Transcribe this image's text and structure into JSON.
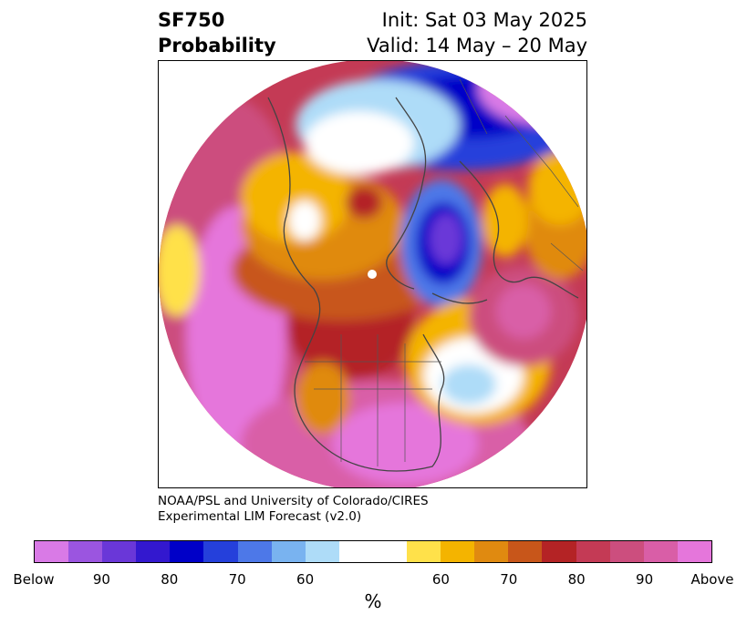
{
  "title": {
    "variable": "SF750",
    "subtitle": "Probability",
    "init": "Init: Sat 03 May 2025",
    "valid": "Valid: 14 May – 20 May"
  },
  "credit": {
    "line1": "NOAA/PSL and University of Colorado/CIRES",
    "line2": "Experimental LIM Forecast (v2.0)"
  },
  "colorbar": {
    "colors": [
      "#d97ae6",
      "#9b55e0",
      "#6a37d8",
      "#3318cf",
      "#0000c8",
      "#2540db",
      "#4d78e8",
      "#79b3f0",
      "#aedcf8",
      "#ffffff",
      "#ffffff",
      "#ffe14a",
      "#f4b400",
      "#e08a10",
      "#c8561a",
      "#b42325",
      "#c43a55",
      "#cc4e7e",
      "#d95ea7",
      "#e576db"
    ],
    "ticks": [
      "Below",
      "90",
      "80",
      "70",
      "60",
      "60",
      "70",
      "80",
      "90",
      "Above"
    ],
    "unit": "%"
  },
  "map": {
    "projection": "north-polar-stereographic",
    "features": [
      "coastlines",
      "country-borders",
      "state-borders"
    ],
    "anomalies": [
      {
        "region": "North Pacific",
        "category": "Above",
        "color": "#e576db"
      },
      {
        "region": "United States",
        "category": "Above",
        "color": "#e576db"
      },
      {
        "region": "Western Europe",
        "category": "Above",
        "color": "#cc4e7e"
      },
      {
        "region": "Northern Russia",
        "category": "Below",
        "color": "#0000c8"
      },
      {
        "region": "Central Arctic / Greenland",
        "category": "Below",
        "color": "#6a37d8"
      },
      {
        "region": "Central North Atlantic",
        "category": "Below",
        "color": "#aedcf8"
      }
    ]
  }
}
